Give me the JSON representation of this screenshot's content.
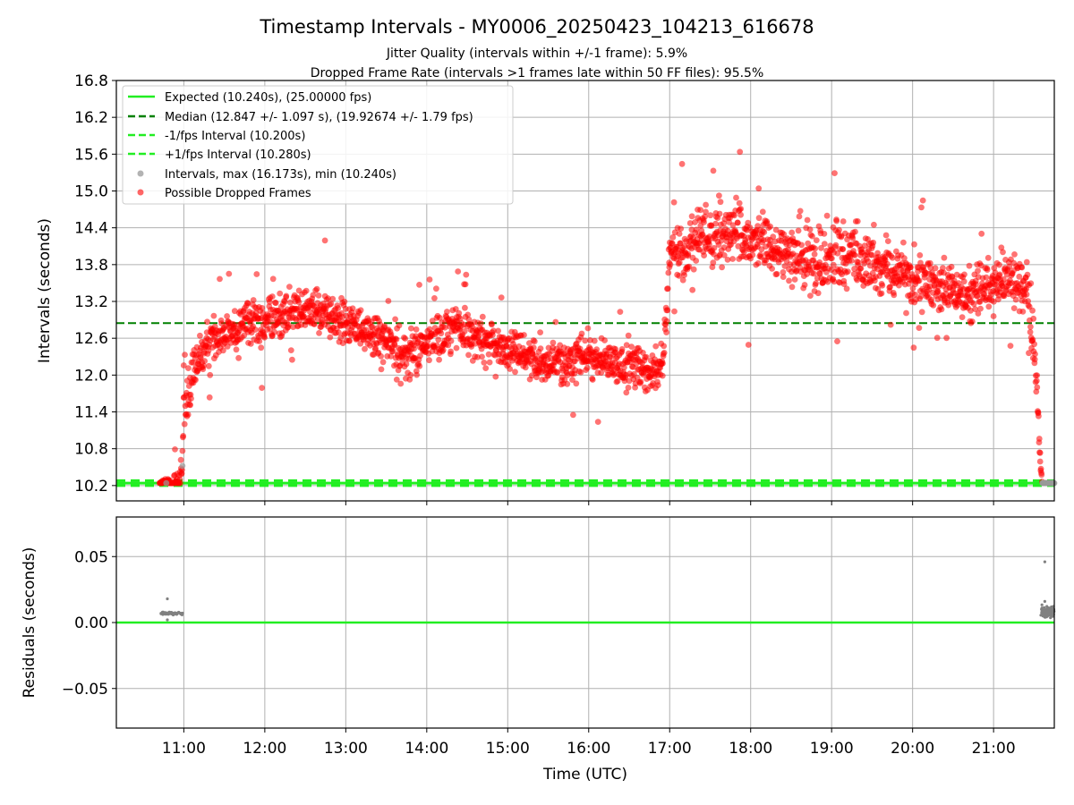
{
  "chart_data": {
    "type": "scatter",
    "title": "Timestamp Intervals - MY0006_20250423_104213_616678",
    "subtitles": [
      "Jitter Quality (intervals within +/-1 frame): 5.9%",
      "Dropped Frame Rate (intervals >1 frames late within 50 FF files): 95.5%"
    ],
    "xlabel": "Time (UTC)",
    "xticks": [
      "11:00",
      "12:00",
      "13:00",
      "14:00",
      "15:00",
      "16:00",
      "17:00",
      "18:00",
      "19:00",
      "20:00",
      "21:00"
    ],
    "xlim": [
      "10:10",
      "21:45"
    ],
    "top_panel": {
      "ylabel": "Intervals (seconds)",
      "ylim": [
        9.95,
        16.8
      ],
      "yticks": [
        "10.2",
        "10.8",
        "11.4",
        "12.0",
        "12.6",
        "13.2",
        "13.8",
        "14.4",
        "15.0",
        "15.6",
        "16.2",
        "16.8"
      ],
      "grid": true,
      "legend_position": "top-left",
      "reference_lines": [
        {
          "label": "Expected (10.240s), (25.00000 fps)",
          "value": 10.24,
          "color": "#22ee22",
          "style": "solid"
        },
        {
          "label": "Median (12.847 +/- 1.097 s), (19.92674 +/- 1.79 fps)",
          "value": 12.847,
          "color": "#008000",
          "style": "dashed"
        },
        {
          "label": "-1/fps Interval (10.200s)",
          "value": 10.2,
          "color": "#22ee22",
          "style": "dashed"
        },
        {
          "label": "+1/fps Interval (10.280s)",
          "value": 10.28,
          "color": "#22ee22",
          "style": "dashed"
        }
      ],
      "series": [
        {
          "label": "Intervals, max (16.173s), min (10.240s)",
          "color": "#999999",
          "marker": "circle"
        },
        {
          "label": "Possible Dropped Frames",
          "color": "#ff0000",
          "marker": "circle"
        }
      ],
      "trend": [
        [
          "10:42",
          10.24
        ],
        [
          "10:58",
          10.24
        ],
        [
          "11:00",
          11.4
        ],
        [
          "11:05",
          11.8
        ],
        [
          "11:10",
          12.2
        ],
        [
          "11:20",
          12.6
        ],
        [
          "11:40",
          12.8
        ],
        [
          "12:00",
          12.9
        ],
        [
          "12:30",
          13.1
        ],
        [
          "13:00",
          12.9
        ],
        [
          "13:30",
          12.5
        ],
        [
          "13:45",
          12.3
        ],
        [
          "14:00",
          12.5
        ],
        [
          "14:20",
          12.8
        ],
        [
          "14:40",
          12.6
        ],
        [
          "15:00",
          12.4
        ],
        [
          "15:30",
          12.2
        ],
        [
          "16:00",
          12.3
        ],
        [
          "16:30",
          12.1
        ],
        [
          "16:55",
          12.1
        ],
        [
          "17:00",
          13.9
        ],
        [
          "17:20",
          14.2
        ],
        [
          "17:40",
          14.3
        ],
        [
          "18:00",
          14.2
        ],
        [
          "18:20",
          14.0
        ],
        [
          "18:40",
          13.9
        ],
        [
          "19:00",
          14.0
        ],
        [
          "19:20",
          13.9
        ],
        [
          "19:40",
          13.8
        ],
        [
          "20:00",
          13.6
        ],
        [
          "20:20",
          13.4
        ],
        [
          "20:40",
          13.3
        ],
        [
          "21:00",
          13.5
        ],
        [
          "21:15",
          13.6
        ],
        [
          "21:25",
          13.4
        ],
        [
          "21:30",
          12.6
        ],
        [
          "21:33",
          11.3
        ],
        [
          "21:35",
          10.5
        ],
        [
          "21:36",
          10.24
        ],
        [
          "21:45",
          10.24
        ]
      ],
      "spread": [
        [
          "10:42",
          0.0
        ],
        [
          "11:00",
          0.3
        ],
        [
          "11:10",
          0.25
        ],
        [
          "12:00",
          0.25
        ],
        [
          "14:00",
          0.25
        ],
        [
          "16:00",
          0.25
        ],
        [
          "16:55",
          0.25
        ],
        [
          "17:00",
          0.3
        ],
        [
          "18:00",
          0.32
        ],
        [
          "19:00",
          0.38
        ],
        [
          "20:00",
          0.3
        ],
        [
          "21:00",
          0.3
        ],
        [
          "21:25",
          0.35
        ],
        [
          "21:33",
          0.3
        ],
        [
          "21:36",
          0.0
        ],
        [
          "21:45",
          0.0
        ]
      ]
    },
    "bottom_panel": {
      "ylabel": "Residuals (seconds)",
      "ylim": [
        -0.08,
        0.08
      ],
      "yticks": [
        "0.05",
        "0.00",
        "−0.05"
      ],
      "zero_line_color": "#22ee22",
      "point_color": "#808080",
      "cluster_left": {
        "from": "10:43",
        "to": "10:59",
        "typical": 0.007,
        "extremes": [
          0.018,
          0.002
        ]
      },
      "cluster_right": {
        "from": "21:35",
        "to": "21:45",
        "typical": 0.008,
        "extremes": [
          0.046,
          0.016
        ]
      }
    }
  }
}
